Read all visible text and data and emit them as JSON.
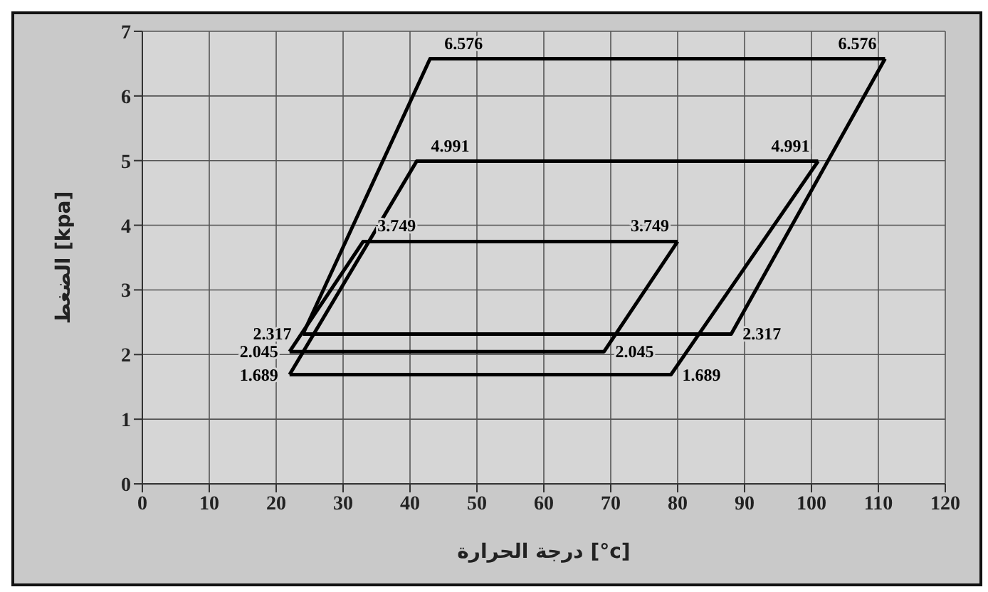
{
  "chart_data": {
    "type": "line",
    "xlabel": "درجة الحرارة [°c]",
    "ylabel": "الضغط [kpa]",
    "xlim": [
      0,
      120
    ],
    "xticks": [
      0,
      10,
      20,
      30,
      40,
      50,
      60,
      70,
      80,
      90,
      100,
      110,
      120
    ],
    "ylim": [
      0,
      7
    ],
    "yticks": [
      0,
      1,
      2,
      3,
      4,
      5,
      6,
      7
    ],
    "grid": true,
    "marker": "none",
    "line_style": "solid",
    "series": [
      {
        "color": "#000000",
        "x": [
          22,
          33,
          80
        ],
        "values": [
          2.045,
          3.749,
          3.749
        ],
        "value_labels": [
          null,
          "3.749",
          "3.749"
        ]
      },
      {
        "color": "#000000",
        "x": [
          22,
          69,
          80
        ],
        "values": [
          2.045,
          2.045,
          3.749
        ],
        "value_labels": [
          "2.045",
          "2.045",
          null
        ]
      },
      {
        "color": "#000000",
        "x": [
          22,
          41,
          101
        ],
        "values": [
          1.689,
          4.991,
          4.991
        ],
        "value_labels": [
          null,
          "4.991",
          "4.991"
        ]
      },
      {
        "color": "#000000",
        "x": [
          22,
          79,
          101
        ],
        "values": [
          1.689,
          1.689,
          4.991
        ],
        "value_labels": [
          "1.689",
          "1.689",
          null
        ]
      },
      {
        "color": "#000000",
        "x": [
          24,
          43,
          111
        ],
        "values": [
          2.317,
          6.576,
          6.576
        ],
        "value_labels": [
          null,
          "6.576",
          "6.576"
        ]
      },
      {
        "color": "#000000",
        "x": [
          24,
          88,
          111
        ],
        "values": [
          2.317,
          2.317,
          6.576
        ],
        "value_labels": [
          "2.317",
          "2.317",
          null
        ]
      }
    ]
  }
}
